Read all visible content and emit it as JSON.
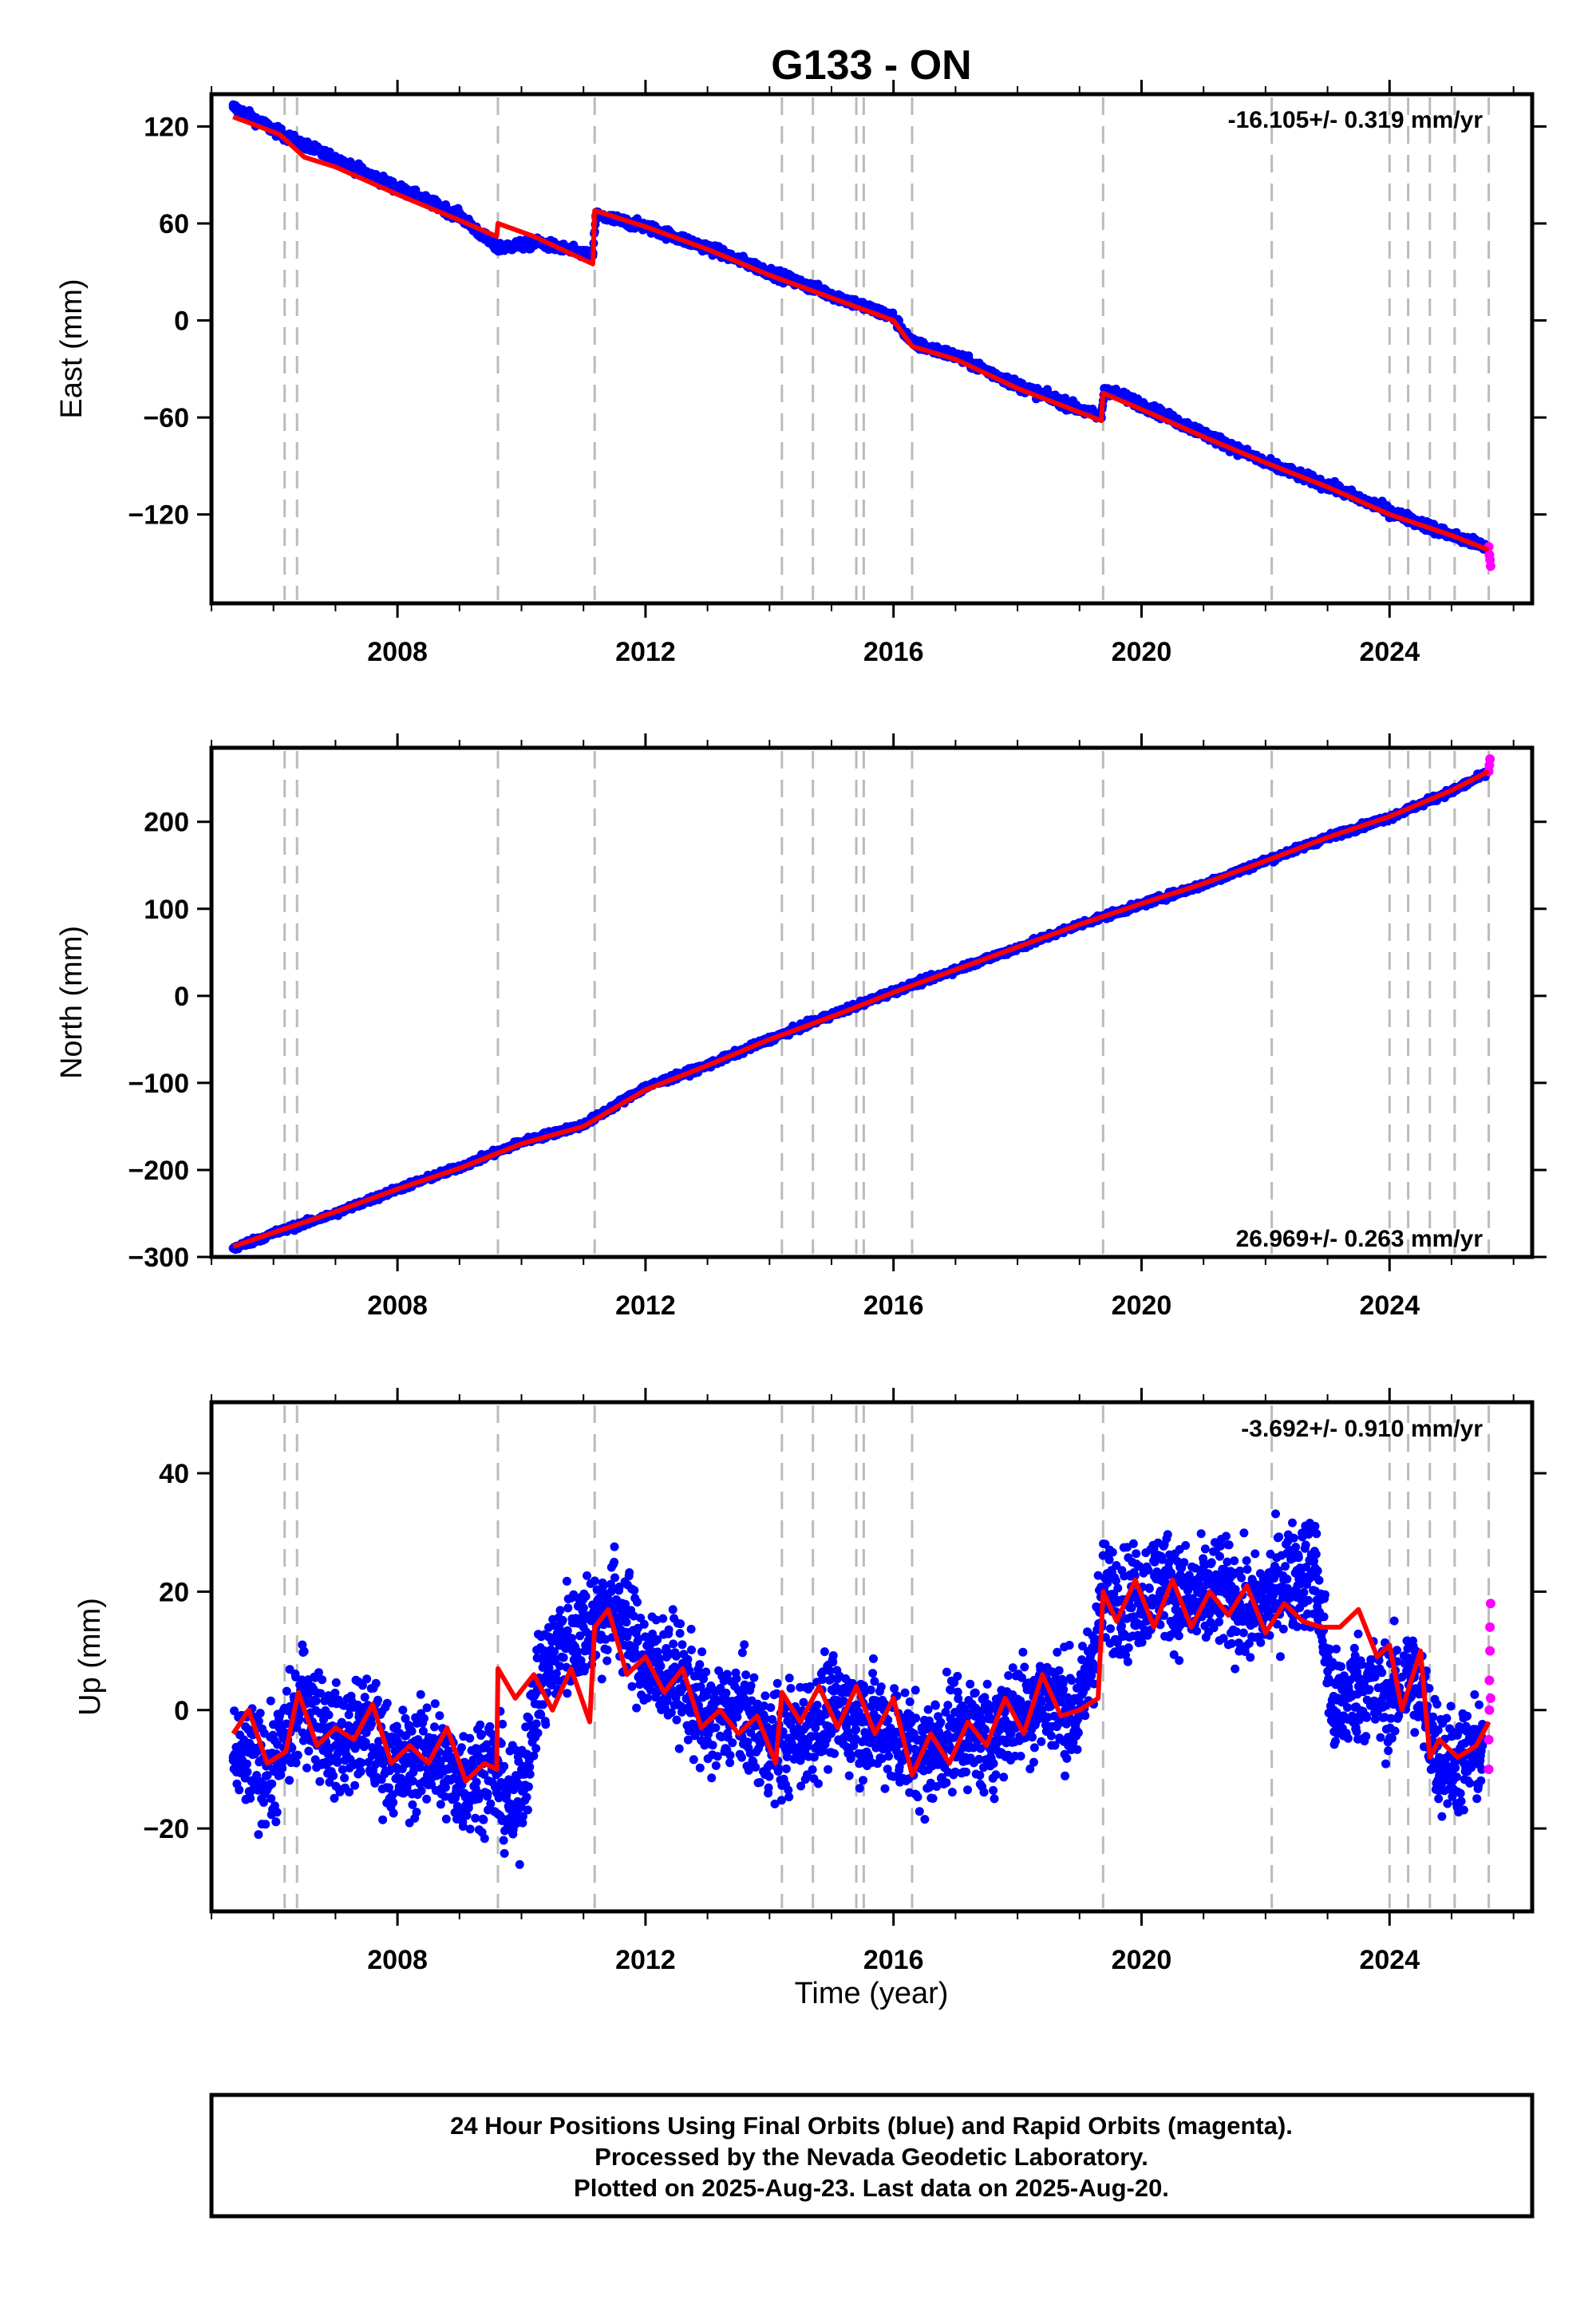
{
  "chart_data": [
    {
      "type": "scatter",
      "title": "G133 - ON",
      "ylabel": "East (mm)",
      "xlim": [
        2005.0,
        2026.3
      ],
      "ylim": [
        -175,
        140
      ],
      "xticks": [
        2008,
        2012,
        2016,
        2020,
        2024
      ],
      "yticks": [
        120,
        60,
        0,
        -60,
        -120
      ],
      "rate": "-16.105+/- 0.319 mm/yr",
      "rate_position": "top-right",
      "grid": false,
      "colors": {
        "final": "#0000ff",
        "rapid": "#ff00ff",
        "model": "#ff0000",
        "event": "#bbbbbb"
      },
      "event_lines": [
        2006.18,
        2006.38,
        2009.62,
        2011.18,
        2014.2,
        2014.7,
        2015.4,
        2015.52,
        2016.3,
        2019.38,
        2022.1,
        2024.0,
        2024.3,
        2024.65,
        2025.05,
        2025.6
      ],
      "series": [
        {
          "name": "Final Orbits (blue)",
          "x": [
            2005.35,
            2006.0,
            2006.4,
            2007.0,
            2008.0,
            2009.0,
            2009.6,
            2010.3,
            2011.15,
            2011.2,
            2012.0,
            2013.0,
            2014.0,
            2015.0,
            2016.0,
            2016.3,
            2017.0,
            2018.0,
            2019.35,
            2019.4,
            2020.0,
            2021.0,
            2022.0,
            2023.0,
            2024.0,
            2025.0,
            2025.55
          ],
          "y": [
            132,
            118,
            110,
            100,
            82,
            65,
            45,
            48,
            40,
            65,
            58,
            45,
            30,
            16,
            2,
            -14,
            -22,
            -40,
            -60,
            -42,
            -52,
            -70,
            -88,
            -102,
            -118,
            -133,
            -140
          ]
        },
        {
          "name": "Rapid Orbits (magenta)",
          "x": [
            2025.6,
            2025.61,
            2025.62,
            2025.63
          ],
          "y": [
            -140,
            -145,
            -148,
            -152
          ]
        },
        {
          "name": "model",
          "x": [
            2005.35,
            2005.7,
            2006.1,
            2006.5,
            2007.0,
            2008.0,
            2009.0,
            2009.6,
            2009.62,
            2010.2,
            2011.15,
            2011.18,
            2012.0,
            2013.0,
            2014.0,
            2015.0,
            2016.0,
            2016.3,
            2017.0,
            2018.0,
            2019.35,
            2019.38,
            2020.0,
            2021.0,
            2022.0,
            2023.0,
            2024.0,
            2025.0,
            2025.6
          ],
          "y": [
            126,
            121,
            115,
            101,
            95,
            78,
            62,
            52,
            60,
            52,
            35,
            68,
            58,
            44,
            28,
            14,
            0,
            -16,
            -24,
            -42,
            -62,
            -45,
            -55,
            -72,
            -88,
            -103,
            -120,
            -133,
            -142
          ]
        }
      ]
    },
    {
      "type": "scatter",
      "ylabel": "North (mm)",
      "xlim": [
        2005.0,
        2026.3
      ],
      "ylim": [
        -300,
        285
      ],
      "xticks": [
        2008,
        2012,
        2016,
        2020,
        2024
      ],
      "yticks": [
        200,
        100,
        0,
        -100,
        -200,
        -300
      ],
      "rate": "26.969+/- 0.263 mm/yr",
      "rate_position": "bottom-right",
      "grid": false,
      "event_lines": [
        2006.18,
        2006.38,
        2009.62,
        2011.18,
        2014.2,
        2014.7,
        2015.4,
        2015.52,
        2016.3,
        2019.38,
        2022.1,
        2024.0,
        2024.3,
        2024.65,
        2025.05,
        2025.6
      ],
      "series": [
        {
          "name": "Final Orbits (blue)",
          "x": [
            2005.35,
            2006.0,
            2007.0,
            2008.0,
            2009.0,
            2010.0,
            2011.0,
            2012.0,
            2013.0,
            2014.0,
            2015.0,
            2016.0,
            2017.0,
            2018.0,
            2019.0,
            2020.0,
            2021.0,
            2022.0,
            2023.0,
            2024.0,
            2025.0,
            2025.55
          ],
          "y": [
            -290,
            -273,
            -250,
            -222,
            -197,
            -168,
            -148,
            -105,
            -80,
            -50,
            -22,
            5,
            30,
            55,
            82,
            105,
            128,
            155,
            182,
            205,
            235,
            255
          ]
        },
        {
          "name": "Rapid Orbits (magenta)",
          "x": [
            2025.6,
            2025.61,
            2025.62
          ],
          "y": [
            258,
            265,
            272
          ]
        },
        {
          "name": "model",
          "x": [
            2005.35,
            2006.0,
            2007.0,
            2008.0,
            2009.0,
            2010.0,
            2011.0,
            2012.0,
            2013.0,
            2014.0,
            2015.0,
            2016.0,
            2017.0,
            2018.0,
            2019.0,
            2020.0,
            2021.0,
            2022.0,
            2023.0,
            2024.0,
            2025.0,
            2025.6
          ],
          "y": [
            -288,
            -272,
            -248,
            -222,
            -198,
            -170,
            -150,
            -108,
            -80,
            -50,
            -24,
            4,
            30,
            56,
            82,
            106,
            129,
            155,
            182,
            206,
            236,
            258
          ]
        }
      ]
    },
    {
      "type": "scatter",
      "ylabel": "Up (mm)",
      "xlabel": "Time (year)",
      "xlim": [
        2005.0,
        2026.3
      ],
      "ylim": [
        -34,
        52
      ],
      "xticks": [
        2008,
        2012,
        2016,
        2020,
        2024
      ],
      "yticks": [
        40,
        20,
        0,
        -20
      ],
      "rate": "-3.692+/- 0.910 mm/yr",
      "rate_position": "top-right",
      "grid": false,
      "event_lines": [
        2006.18,
        2006.38,
        2009.62,
        2011.18,
        2014.2,
        2014.7,
        2015.4,
        2015.52,
        2016.3,
        2019.38,
        2022.1,
        2024.0,
        2024.3,
        2024.65,
        2025.05,
        2025.6
      ],
      "series": [
        {
          "name": "Final Orbits (blue)",
          "x": [
            2005.35,
            2006.0,
            2006.5,
            2007.0,
            2007.5,
            2008.0,
            2008.5,
            2009.0,
            2009.5,
            2009.9,
            2010.3,
            2010.7,
            2011.0,
            2011.5,
            2012.0,
            2012.5,
            2013.0,
            2013.5,
            2014.0,
            2014.5,
            2015.0,
            2015.5,
            2016.0,
            2016.5,
            2017.0,
            2017.5,
            2018.0,
            2018.5,
            2019.0,
            2019.4,
            2019.8,
            2020.3,
            2020.8,
            2021.3,
            2021.8,
            2022.3,
            2022.8,
            2023.1,
            2023.5,
            2024.0,
            2024.4,
            2024.8,
            2025.2,
            2025.5
          ],
          "y": [
            -8,
            -10,
            2,
            -6,
            -3,
            -10,
            -7,
            -12,
            -9,
            -18,
            5,
            12,
            14,
            18,
            8,
            6,
            -2,
            0,
            -6,
            -4,
            0,
            -2,
            -4,
            -8,
            -3,
            -5,
            0,
            2,
            -1,
            20,
            18,
            22,
            18,
            20,
            16,
            22,
            24,
            0,
            4,
            2,
            6,
            -8,
            -9,
            -6
          ]
        },
        {
          "name": "Rapid Orbits (magenta)",
          "x": [
            2025.6,
            2025.6,
            2025.61,
            2025.61,
            2025.62,
            2025.62,
            2025.63,
            2025.63
          ],
          "y": [
            -10,
            -5,
            0,
            5,
            10,
            14,
            18,
            2
          ]
        },
        {
          "name": "model",
          "x": [
            2005.35,
            2005.6,
            2005.9,
            2006.2,
            2006.4,
            2006.7,
            2007.0,
            2007.3,
            2007.6,
            2007.9,
            2008.2,
            2008.5,
            2008.8,
            2009.1,
            2009.4,
            2009.6,
            2009.62,
            2009.9,
            2010.2,
            2010.5,
            2010.8,
            2011.1,
            2011.18,
            2011.4,
            2011.7,
            2012.0,
            2012.3,
            2012.6,
            2012.9,
            2013.2,
            2013.5,
            2013.8,
            2014.1,
            2014.2,
            2014.5,
            2014.8,
            2015.1,
            2015.4,
            2015.7,
            2016.0,
            2016.3,
            2016.6,
            2016.9,
            2017.2,
            2017.5,
            2017.8,
            2018.1,
            2018.4,
            2018.7,
            2019.0,
            2019.3,
            2019.38,
            2019.6,
            2019.9,
            2020.2,
            2020.5,
            2020.8,
            2021.1,
            2021.4,
            2021.7,
            2022.0,
            2022.3,
            2022.6,
            2022.9,
            2023.2,
            2023.5,
            2023.8,
            2024.0,
            2024.2,
            2024.5,
            2024.65,
            2024.8,
            2025.1,
            2025.4,
            2025.6
          ],
          "y": [
            -4,
            0,
            -9,
            -7,
            3,
            -6,
            -3,
            -5,
            1,
            -9,
            -6,
            -9,
            -3,
            -12,
            -9,
            -10,
            7,
            2,
            6,
            0,
            7,
            -2,
            14,
            17,
            6,
            9,
            3,
            7,
            -3,
            0,
            -4,
            -1,
            -9,
            3,
            -2,
            4,
            -3,
            4,
            -4,
            2,
            -11,
            -4,
            -9,
            -2,
            -6,
            2,
            -4,
            6,
            -1,
            0,
            2,
            20,
            15,
            22,
            14,
            22,
            14,
            20,
            16,
            21,
            13,
            18,
            15,
            14,
            14,
            17,
            9,
            11,
            0,
            10,
            -8,
            -5,
            -8,
            -6,
            -2
          ]
        }
      ]
    }
  ],
  "footer": {
    "line1": "24 Hour Positions Using Final Orbits (blue) and Rapid Orbits (magenta).",
    "line2": "Processed by the Nevada Geodetic Laboratory.",
    "line3": "Plotted on 2025-Aug-23. Last data on 2025-Aug-20."
  }
}
